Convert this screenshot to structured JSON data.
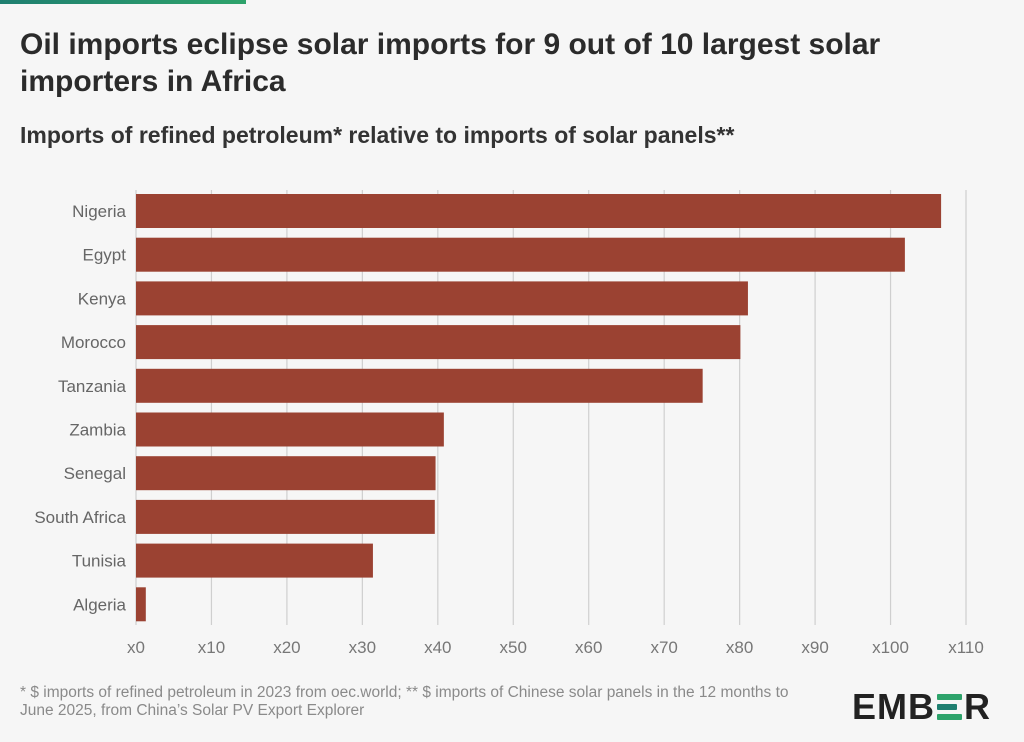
{
  "colors": {
    "bar": "#9b4232",
    "grid": "#cfcfcf",
    "label": "#666666",
    "tick": "#777777",
    "accent_green": "#2ea36b",
    "accent_teal": "#1f7f70"
  },
  "header": {
    "title": "Oil imports eclipse solar imports for 9 out of 10 largest solar importers in Africa",
    "subtitle": "Imports of refined petroleum* relative to imports of solar panels**"
  },
  "footer": {
    "footnote": "* $ imports of refined petroleum in 2023 from oec.world; ** $ imports of Chinese solar panels in the 12 months to June 2025, from China’s Solar PV Export Explorer",
    "logo_text": "EMBER"
  },
  "chart_data": {
    "type": "bar",
    "orientation": "horizontal",
    "categories": [
      "Nigeria",
      "Egypt",
      "Kenya",
      "Morocco",
      "Tanzania",
      "Zambia",
      "Senegal",
      "South Africa",
      "Tunisia",
      "Algeria"
    ],
    "values": [
      106.7,
      101.9,
      81.1,
      80.1,
      75.1,
      40.8,
      39.7,
      39.6,
      31.4,
      1.3
    ],
    "xlim": [
      0,
      110
    ],
    "x_ticks": [
      0,
      10,
      20,
      30,
      40,
      50,
      60,
      70,
      80,
      90,
      100,
      110
    ],
    "x_tick_labels": [
      "x0",
      "x10",
      "x20",
      "x30",
      "x40",
      "x50",
      "x60",
      "x70",
      "x80",
      "x90",
      "x100",
      "x110"
    ],
    "grid": true,
    "legend": "none"
  }
}
